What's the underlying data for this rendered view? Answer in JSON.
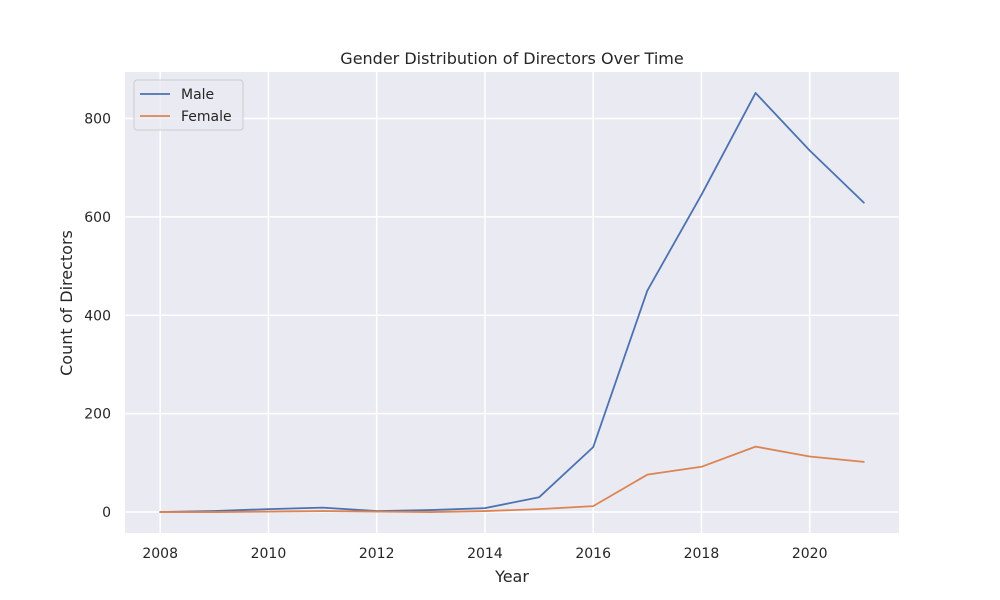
{
  "chart_data": {
    "type": "line",
    "title": "Gender Distribution of Directors Over Time",
    "xlabel": "Year",
    "ylabel": "Count of Directors",
    "x": [
      2008,
      2009,
      2010,
      2011,
      2012,
      2013,
      2014,
      2015,
      2016,
      2017,
      2018,
      2019,
      2020,
      2021
    ],
    "series": [
      {
        "name": "Male",
        "color": "#4c72b0",
        "values": [
          0,
          2,
          6,
          9,
          2,
          4,
          8,
          30,
          132,
          450,
          645,
          852,
          735,
          629
        ]
      },
      {
        "name": "Female",
        "color": "#dd8452",
        "values": [
          0,
          0,
          1,
          2,
          1,
          0,
          2,
          6,
          12,
          76,
          92,
          133,
          113,
          102
        ]
      }
    ],
    "xlim": [
      2007.35,
      2021.65
    ],
    "ylim": [
      -42.6,
      894.6
    ],
    "x_ticks": [
      2008,
      2010,
      2012,
      2014,
      2016,
      2018,
      2020
    ],
    "y_ticks": [
      0,
      200,
      400,
      600,
      800
    ],
    "grid": true,
    "legend_position": "top-left",
    "plot_background": "#eaeaf2"
  }
}
